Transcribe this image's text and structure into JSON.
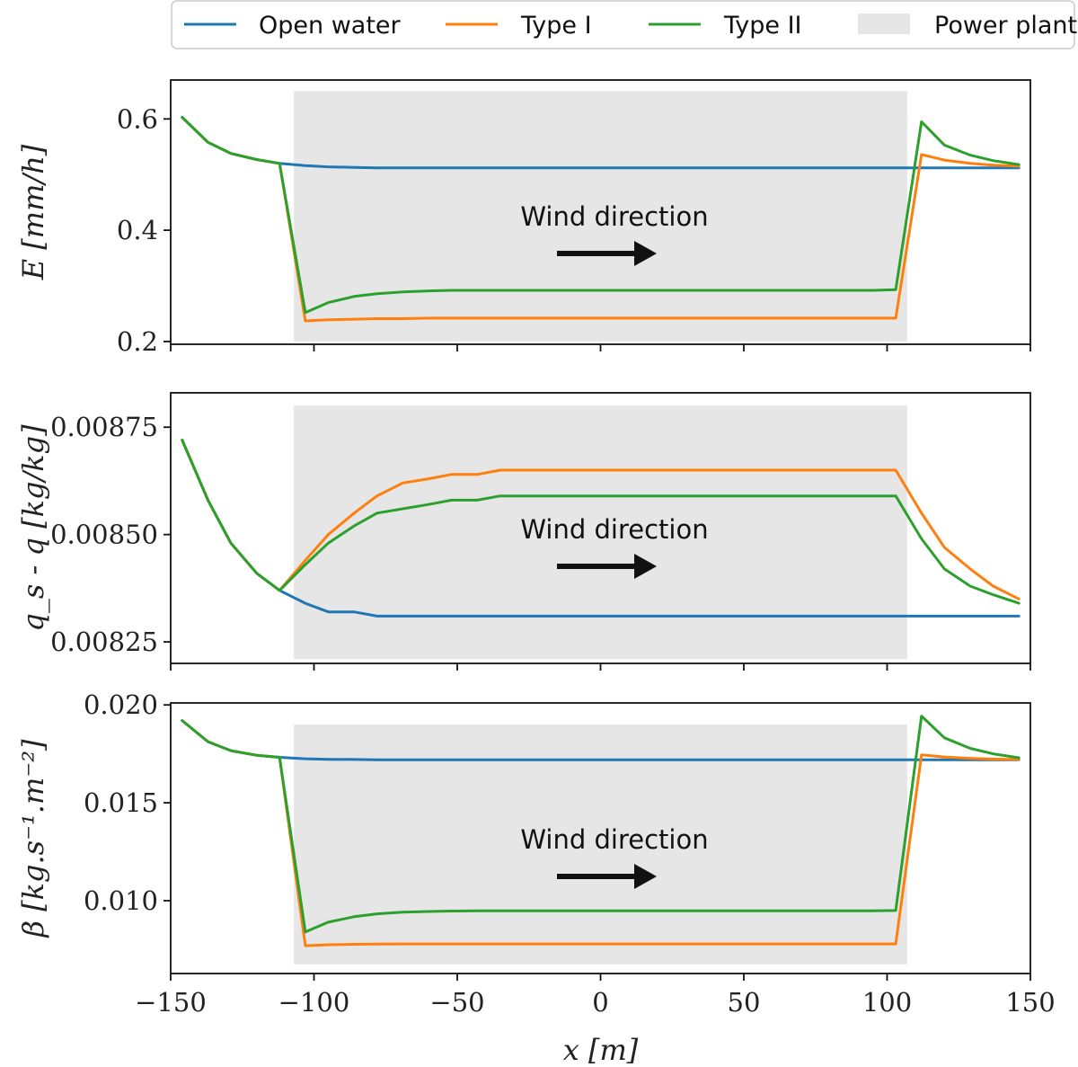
{
  "legend": {
    "items": [
      {
        "label": "Open water",
        "kind": "line",
        "color": "#1f77b4"
      },
      {
        "label": "Type I",
        "kind": "line",
        "color": "#ff7f0e"
      },
      {
        "label": "Type II",
        "kind": "line",
        "color": "#2ca02c"
      },
      {
        "label": "Power plant",
        "kind": "patch",
        "color": "#e6e6e6"
      }
    ]
  },
  "chart_data": [
    {
      "type": "line",
      "ylabel": "E [mm/h]",
      "xlabel": "",
      "xlim": [
        -150,
        150
      ],
      "ylim": [
        0.195,
        0.67
      ],
      "yticks": [
        0.2,
        0.4,
        0.6
      ],
      "ytick_labels": [
        "0.2",
        "0.4",
        "0.6"
      ],
      "xticks": [
        -150,
        -100,
        -50,
        0,
        50,
        100,
        150
      ],
      "xtick_labels": [],
      "shaded_region": {
        "label": "Power plant",
        "x": [
          -107,
          107
        ],
        "y": [
          0.2,
          0.65
        ],
        "color": "#e6e6e6"
      },
      "annotation": {
        "text": "Wind direction",
        "arrow": "right"
      },
      "series": [
        {
          "name": "Open water",
          "color": "#1f77b4",
          "x": [
            -146,
            -137,
            -129,
            -120,
            -112,
            -103,
            -95,
            -86,
            -78,
            -69,
            -60,
            -52,
            -43,
            -35,
            -26,
            -18,
            -9,
            0,
            9,
            18,
            26,
            35,
            43,
            52,
            60,
            69,
            78,
            86,
            95,
            103,
            112,
            120,
            129,
            137,
            146
          ],
          "y": [
            0.603,
            0.558,
            0.538,
            0.527,
            0.52,
            0.516,
            0.514,
            0.513,
            0.512,
            0.512,
            0.512,
            0.512,
            0.512,
            0.512,
            0.512,
            0.512,
            0.512,
            0.512,
            0.512,
            0.512,
            0.512,
            0.512,
            0.512,
            0.512,
            0.512,
            0.512,
            0.512,
            0.512,
            0.512,
            0.512,
            0.512,
            0.512,
            0.512,
            0.512,
            0.512
          ]
        },
        {
          "name": "Type I",
          "color": "#ff7f0e",
          "x": [
            -146,
            -137,
            -129,
            -120,
            -112,
            -103,
            -95,
            -86,
            -78,
            -69,
            -60,
            -52,
            -43,
            -35,
            -26,
            -18,
            -9,
            0,
            9,
            18,
            26,
            35,
            43,
            52,
            60,
            69,
            78,
            86,
            95,
            103,
            112,
            120,
            129,
            137,
            146
          ],
          "y": [
            0.603,
            0.558,
            0.538,
            0.527,
            0.52,
            0.237,
            0.239,
            0.24,
            0.241,
            0.241,
            0.242,
            0.242,
            0.242,
            0.242,
            0.242,
            0.242,
            0.242,
            0.242,
            0.242,
            0.242,
            0.242,
            0.242,
            0.242,
            0.242,
            0.242,
            0.242,
            0.242,
            0.242,
            0.242,
            0.242,
            0.536,
            0.526,
            0.52,
            0.517,
            0.515
          ]
        },
        {
          "name": "Type II",
          "color": "#2ca02c",
          "x": [
            -146,
            -137,
            -129,
            -120,
            -112,
            -103,
            -95,
            -86,
            -78,
            -69,
            -60,
            -52,
            -43,
            -35,
            -26,
            -18,
            -9,
            0,
            9,
            18,
            26,
            35,
            43,
            52,
            60,
            69,
            78,
            86,
            95,
            103,
            112,
            120,
            129,
            137,
            146
          ],
          "y": [
            0.603,
            0.558,
            0.538,
            0.527,
            0.52,
            0.252,
            0.27,
            0.281,
            0.286,
            0.289,
            0.291,
            0.292,
            0.292,
            0.292,
            0.292,
            0.292,
            0.292,
            0.292,
            0.292,
            0.292,
            0.292,
            0.292,
            0.292,
            0.292,
            0.292,
            0.292,
            0.292,
            0.292,
            0.292,
            0.293,
            0.595,
            0.553,
            0.535,
            0.525,
            0.518
          ]
        }
      ]
    },
    {
      "type": "line",
      "ylabel": "q_s - q [kg/kg]",
      "xlabel": "",
      "xlim": [
        -150,
        150
      ],
      "ylim": [
        0.0082,
        0.00883
      ],
      "yticks": [
        0.00825,
        0.0085,
        0.00875
      ],
      "ytick_labels": [
        "0.00825",
        "0.00850",
        "0.00875"
      ],
      "xticks": [
        -150,
        -100,
        -50,
        0,
        50,
        100,
        150
      ],
      "xtick_labels": [],
      "shaded_region": {
        "label": "Power plant",
        "x": [
          -107,
          107
        ],
        "y": [
          0.00821,
          0.0088
        ],
        "color": "#e6e6e6"
      },
      "annotation": {
        "text": "Wind direction",
        "arrow": "right"
      },
      "series": [
        {
          "name": "Open water",
          "color": "#1f77b4",
          "x": [
            -146,
            -137,
            -129,
            -120,
            -112,
            -103,
            -95,
            -86,
            -78,
            -69,
            -60,
            -52,
            -43,
            -35,
            -26,
            -18,
            -9,
            0,
            9,
            18,
            26,
            35,
            43,
            52,
            60,
            69,
            78,
            86,
            95,
            103,
            112,
            120,
            129,
            137,
            146
          ],
          "y": [
            0.00872,
            0.00858,
            0.00848,
            0.00841,
            0.00837,
            0.00834,
            0.00832,
            0.00832,
            0.00831,
            0.00831,
            0.00831,
            0.00831,
            0.00831,
            0.00831,
            0.00831,
            0.00831,
            0.00831,
            0.00831,
            0.00831,
            0.00831,
            0.00831,
            0.00831,
            0.00831,
            0.00831,
            0.00831,
            0.00831,
            0.00831,
            0.00831,
            0.00831,
            0.00831,
            0.00831,
            0.00831,
            0.00831,
            0.00831,
            0.00831
          ]
        },
        {
          "name": "Type I",
          "color": "#ff7f0e",
          "x": [
            -146,
            -137,
            -129,
            -120,
            -112,
            -103,
            -95,
            -86,
            -78,
            -69,
            -60,
            -52,
            -43,
            -35,
            -26,
            -18,
            -9,
            0,
            9,
            18,
            26,
            35,
            43,
            52,
            60,
            69,
            78,
            86,
            95,
            103,
            112,
            120,
            129,
            137,
            146
          ],
          "y": [
            0.00872,
            0.00858,
            0.00848,
            0.00841,
            0.00837,
            0.00844,
            0.0085,
            0.00855,
            0.00859,
            0.00862,
            0.00863,
            0.00864,
            0.00864,
            0.00865,
            0.00865,
            0.00865,
            0.00865,
            0.00865,
            0.00865,
            0.00865,
            0.00865,
            0.00865,
            0.00865,
            0.00865,
            0.00865,
            0.00865,
            0.00865,
            0.00865,
            0.00865,
            0.00865,
            0.00855,
            0.00847,
            0.00842,
            0.00838,
            0.00835
          ]
        },
        {
          "name": "Type II",
          "color": "#2ca02c",
          "x": [
            -146,
            -137,
            -129,
            -120,
            -112,
            -103,
            -95,
            -86,
            -78,
            -69,
            -60,
            -52,
            -43,
            -35,
            -26,
            -18,
            -9,
            0,
            9,
            18,
            26,
            35,
            43,
            52,
            60,
            69,
            78,
            86,
            95,
            103,
            112,
            120,
            129,
            137,
            146
          ],
          "y": [
            0.00872,
            0.00858,
            0.00848,
            0.00841,
            0.00837,
            0.00843,
            0.00848,
            0.00852,
            0.00855,
            0.00856,
            0.00857,
            0.00858,
            0.00858,
            0.00859,
            0.00859,
            0.00859,
            0.00859,
            0.00859,
            0.00859,
            0.00859,
            0.00859,
            0.00859,
            0.00859,
            0.00859,
            0.00859,
            0.00859,
            0.00859,
            0.00859,
            0.00859,
            0.00859,
            0.00849,
            0.00842,
            0.00838,
            0.00836,
            0.00834
          ]
        }
      ]
    },
    {
      "type": "line",
      "ylabel": "β [kg.s⁻¹.m⁻²]",
      "xlabel": "x [m]",
      "xlim": [
        -150,
        150
      ],
      "ylim": [
        0.00628,
        0.0201
      ],
      "yticks": [
        0.01,
        0.015,
        0.02
      ],
      "ytick_labels": [
        "0.010",
        "0.015",
        "0.020"
      ],
      "xticks": [
        -150,
        -100,
        -50,
        0,
        50,
        100,
        150
      ],
      "xtick_labels": [
        "−150",
        "−100",
        "−50",
        "0",
        "50",
        "100",
        "150"
      ],
      "shaded_region": {
        "label": "Power plant",
        "x": [
          -107,
          107
        ],
        "y": [
          0.00675,
          0.019
        ],
        "color": "#e6e6e6"
      },
      "annotation": {
        "text": "Wind direction",
        "arrow": "right"
      },
      "series": [
        {
          "name": "Open water",
          "color": "#1f77b4",
          "x": [
            -146,
            -137,
            -129,
            -120,
            -112,
            -103,
            -95,
            -86,
            -78,
            -69,
            -60,
            -52,
            -43,
            -35,
            -26,
            -18,
            -9,
            0,
            9,
            18,
            26,
            35,
            43,
            52,
            60,
            69,
            78,
            86,
            95,
            103,
            112,
            120,
            129,
            137,
            146
          ],
          "y": [
            0.0192,
            0.01812,
            0.01766,
            0.01743,
            0.01732,
            0.01725,
            0.01722,
            0.01721,
            0.0172,
            0.0172,
            0.0172,
            0.0172,
            0.0172,
            0.0172,
            0.0172,
            0.0172,
            0.0172,
            0.0172,
            0.0172,
            0.0172,
            0.0172,
            0.0172,
            0.0172,
            0.0172,
            0.0172,
            0.0172,
            0.0172,
            0.0172,
            0.0172,
            0.0172,
            0.0172,
            0.0172,
            0.0172,
            0.0172,
            0.0172
          ]
        },
        {
          "name": "Type I",
          "color": "#ff7f0e",
          "x": [
            -146,
            -137,
            -129,
            -120,
            -112,
            -103,
            -95,
            -86,
            -78,
            -69,
            -60,
            -52,
            -43,
            -35,
            -26,
            -18,
            -9,
            0,
            9,
            18,
            26,
            35,
            43,
            52,
            60,
            69,
            78,
            86,
            95,
            103,
            112,
            120,
            129,
            137,
            146
          ],
          "y": [
            0.0192,
            0.01812,
            0.01766,
            0.01743,
            0.01732,
            0.0077,
            0.00775,
            0.00777,
            0.00778,
            0.00779,
            0.00779,
            0.00779,
            0.00779,
            0.00779,
            0.00779,
            0.00779,
            0.00779,
            0.00779,
            0.00779,
            0.00779,
            0.00779,
            0.00779,
            0.00779,
            0.00779,
            0.00779,
            0.00779,
            0.00779,
            0.00779,
            0.00779,
            0.00779,
            0.01745,
            0.01734,
            0.01727,
            0.01723,
            0.01721
          ]
        },
        {
          "name": "Type II",
          "color": "#2ca02c",
          "x": [
            -146,
            -137,
            -129,
            -120,
            -112,
            -103,
            -95,
            -86,
            -78,
            -69,
            -60,
            -52,
            -43,
            -35,
            -26,
            -18,
            -9,
            0,
            9,
            18,
            26,
            35,
            43,
            52,
            60,
            69,
            78,
            86,
            95,
            103,
            112,
            120,
            129,
            137,
            146
          ],
          "y": [
            0.0192,
            0.01812,
            0.01766,
            0.01743,
            0.01732,
            0.0084,
            0.0089,
            0.00918,
            0.00933,
            0.00941,
            0.00945,
            0.00947,
            0.00948,
            0.00948,
            0.00948,
            0.00948,
            0.00948,
            0.00948,
            0.00948,
            0.00948,
            0.00948,
            0.00948,
            0.00948,
            0.00948,
            0.00948,
            0.00948,
            0.00948,
            0.00948,
            0.00948,
            0.0095,
            0.01943,
            0.01832,
            0.01778,
            0.0175,
            0.0173
          ]
        }
      ]
    }
  ]
}
